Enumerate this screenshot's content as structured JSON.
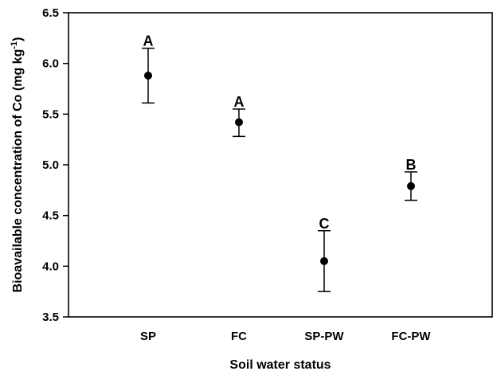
{
  "chart_data": {
    "type": "scatter",
    "xlabel": "Soil water status",
    "ylabel": {
      "main": "Bioavailable concentration of Co (mg kg",
      "superscript": "-1",
      "close": ")"
    },
    "categories": [
      "SP",
      "FC",
      "SP-PW",
      "FC-PW"
    ],
    "values": [
      5.88,
      5.42,
      4.05,
      4.79
    ],
    "error_low": [
      5.61,
      5.28,
      3.75,
      4.65
    ],
    "error_high": [
      6.15,
      5.55,
      4.35,
      4.93
    ],
    "significance_letters": [
      "A",
      "A",
      "C",
      "B"
    ],
    "ylim": [
      3.5,
      6.5
    ],
    "y_ticks": [
      "3.5",
      "4.0",
      "4.5",
      "5.0",
      "5.5",
      "6.0",
      "6.5"
    ],
    "grid": false,
    "legend": "none",
    "colors": {
      "marker": "#000000",
      "axis": "#000000"
    }
  }
}
